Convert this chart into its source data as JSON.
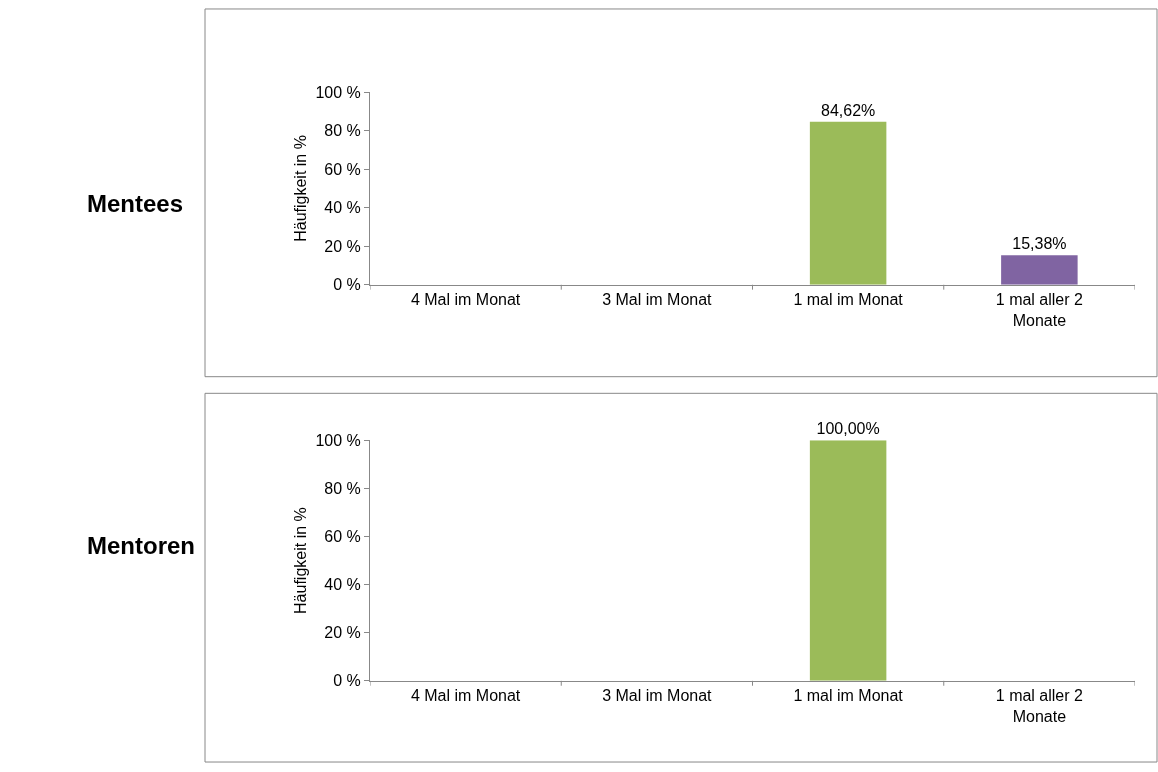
{
  "chart_data": [
    {
      "type": "bar",
      "title": "Mentees",
      "ylabel": "Häufigkeit in %",
      "categories": [
        "4 Mal im Monat",
        "3 Mal im Monat",
        "1 mal im Monat",
        "1 mal aller 2 Monate"
      ],
      "values": [
        0,
        0,
        84.62,
        15.38
      ],
      "colors": [
        "#9bbb59",
        "#9bbb59",
        "#9bbb59",
        "#8064a2"
      ],
      "value_labels": [
        null,
        null,
        "84,62%",
        "15,38%"
      ],
      "ylim": [
        0,
        100
      ],
      "yticks": [
        {
          "value": 0,
          "label": "0 %"
        },
        {
          "value": 20,
          "label": "20 %"
        },
        {
          "value": 40,
          "label": "40 %"
        },
        {
          "value": 60,
          "label": "60 %"
        },
        {
          "value": 80,
          "label": "80 %"
        },
        {
          "value": 100,
          "label": "100 %"
        }
      ]
    },
    {
      "type": "bar",
      "title": "Mentoren",
      "ylabel": "Häufigkeit in %",
      "categories": [
        "4 Mal im Monat",
        "3 Mal im Monat",
        "1 mal im Monat",
        "1 mal aller 2 Monate"
      ],
      "values": [
        0,
        0,
        100,
        0
      ],
      "colors": [
        "#9bbb59",
        "#9bbb59",
        "#9bbb59",
        "#9bbb59"
      ],
      "value_labels": [
        null,
        null,
        "100,00%",
        null
      ],
      "ylim": [
        0,
        100
      ],
      "yticks": [
        {
          "value": 0,
          "label": "0 %"
        },
        {
          "value": 20,
          "label": "20 %"
        },
        {
          "value": 40,
          "label": "40 %"
        },
        {
          "value": 60,
          "label": "60 %"
        },
        {
          "value": 80,
          "label": "80 %"
        },
        {
          "value": 100,
          "label": "100 %"
        }
      ]
    }
  ]
}
